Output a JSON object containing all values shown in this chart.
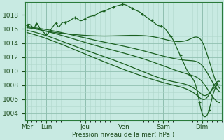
{
  "bg_color": "#c8eae2",
  "grid_minor_color": "#b0d8cc",
  "grid_major_color": "#90c0b0",
  "line_color": "#1a6020",
  "xlabel": "Pression niveau de la mer( hPa )",
  "ylim": [
    1003.0,
    1019.8
  ],
  "yticks": [
    1004,
    1006,
    1008,
    1010,
    1012,
    1014,
    1016,
    1018
  ],
  "days": [
    "Mer",
    "Lun",
    "Jeu",
    "Ven",
    "Sam",
    "Dim"
  ],
  "day_positions": [
    0,
    24,
    72,
    120,
    168,
    216
  ],
  "xlim": [
    -2,
    240
  ]
}
